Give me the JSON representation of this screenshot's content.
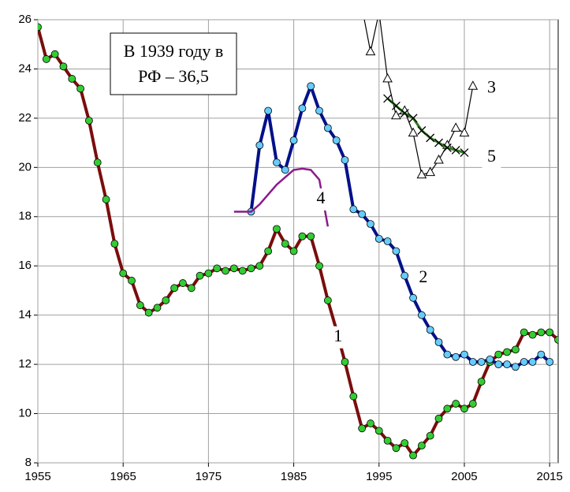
{
  "chart_data": {
    "type": "line",
    "annotation": [
      "В 1939 году в",
      "РФ – 36,5"
    ],
    "xlim": [
      1955,
      2016
    ],
    "xticks": [
      1955,
      1965,
      1975,
      1985,
      1995,
      2005,
      2015
    ],
    "ylim": [
      8,
      26
    ],
    "yticks": [
      8,
      10,
      12,
      14,
      16,
      18,
      20,
      22,
      24,
      26
    ],
    "grid": true,
    "series": [
      {
        "name": "1",
        "color": "#7a0d0d",
        "marker": "circle",
        "marker_color": "#33cc33",
        "x": [
          1955,
          1956,
          1957,
          1958,
          1959,
          1960,
          1961,
          1962,
          1963,
          1964,
          1965,
          1966,
          1967,
          1968,
          1969,
          1970,
          1971,
          1972,
          1973,
          1974,
          1975,
          1976,
          1977,
          1978,
          1979,
          1980,
          1981,
          1982,
          1983,
          1984,
          1985,
          1986,
          1987,
          1988,
          1989,
          1990,
          1991,
          1992,
          1993,
          1994,
          1995,
          1996,
          1997,
          1998,
          1999,
          2000,
          2001,
          2002,
          2003,
          2004,
          2005,
          2006,
          2007,
          2008,
          2009,
          2010,
          2011,
          2012,
          2013,
          2014,
          2015,
          2016
        ],
        "values": [
          25.7,
          24.4,
          24.6,
          24.1,
          23.6,
          23.2,
          21.9,
          20.2,
          18.7,
          16.9,
          15.7,
          15.4,
          14.4,
          14.1,
          14.3,
          14.6,
          15.1,
          15.3,
          15.1,
          15.6,
          15.7,
          15.9,
          15.8,
          15.9,
          15.8,
          15.9,
          16.0,
          16.6,
          17.5,
          16.9,
          16.6,
          17.2,
          17.2,
          16.0,
          14.6,
          13.4,
          12.1,
          10.7,
          9.4,
          9.6,
          9.3,
          8.9,
          8.6,
          8.8,
          8.3,
          8.7,
          9.1,
          9.8,
          10.2,
          10.4,
          10.2,
          10.4,
          11.3,
          12.1,
          12.4,
          12.5,
          12.6,
          13.3,
          13.2,
          13.3,
          13.3,
          13.0
        ]
      },
      {
        "name": "2",
        "color": "#00108a",
        "marker": "circle",
        "marker_color": "#66ccff",
        "x": [
          1980,
          1981,
          1982,
          1983,
          1984,
          1985,
          1986,
          1987,
          1988,
          1989,
          1990,
          1991,
          1992,
          1993,
          1994,
          1995,
          1996,
          1997,
          1998,
          1999,
          2000,
          2001,
          2002,
          2003,
          2004,
          2005,
          2006,
          2007,
          2008,
          2009,
          2010,
          2011,
          2012,
          2013,
          2014,
          2015
        ],
        "values": [
          18.2,
          20.9,
          22.3,
          20.2,
          19.9,
          21.1,
          22.4,
          23.3,
          22.3,
          21.6,
          21.1,
          20.3,
          18.3,
          18.1,
          17.7,
          17.1,
          17.0,
          16.6,
          15.6,
          14.7,
          14.0,
          13.4,
          12.9,
          12.4,
          12.3,
          12.4,
          12.1,
          12.1,
          12.2,
          12.0,
          12.0,
          11.9,
          12.1,
          12.1,
          12.4,
          12.1
        ]
      },
      {
        "name": "3",
        "color": "#000000",
        "marker": "triangle",
        "marker_color": "#ffffff",
        "x": [
          1993,
          1994,
          1995,
          1996,
          1997,
          1998,
          1999,
          2000,
          2001,
          2002,
          2003,
          2004,
          2005,
          2006
        ],
        "values": [
          26.5,
          24.7,
          26.3,
          23.6,
          22.1,
          22.3,
          21.4,
          19.7,
          19.8,
          20.3,
          20.9,
          21.6,
          21.4,
          23.3
        ]
      },
      {
        "name": "4",
        "color": "#8b1a8b",
        "marker": "none",
        "x": [
          1978,
          1980,
          1981,
          1982,
          1983,
          1984,
          1985,
          1986,
          1987,
          1988,
          1989
        ],
        "values": [
          18.2,
          18.2,
          18.5,
          18.9,
          19.3,
          19.6,
          19.9,
          19.95,
          19.9,
          19.5,
          17.6
        ]
      },
      {
        "name": "5",
        "color": "#2e7d1e",
        "marker": "x",
        "marker_color": "#000000",
        "x": [
          1996,
          1997,
          1998,
          1999,
          2000,
          2001,
          2002,
          2003,
          2004,
          2005
        ],
        "values": [
          22.8,
          22.5,
          22.2,
          22.0,
          21.5,
          21.2,
          21.0,
          20.8,
          20.7,
          20.6
        ]
      }
    ]
  }
}
